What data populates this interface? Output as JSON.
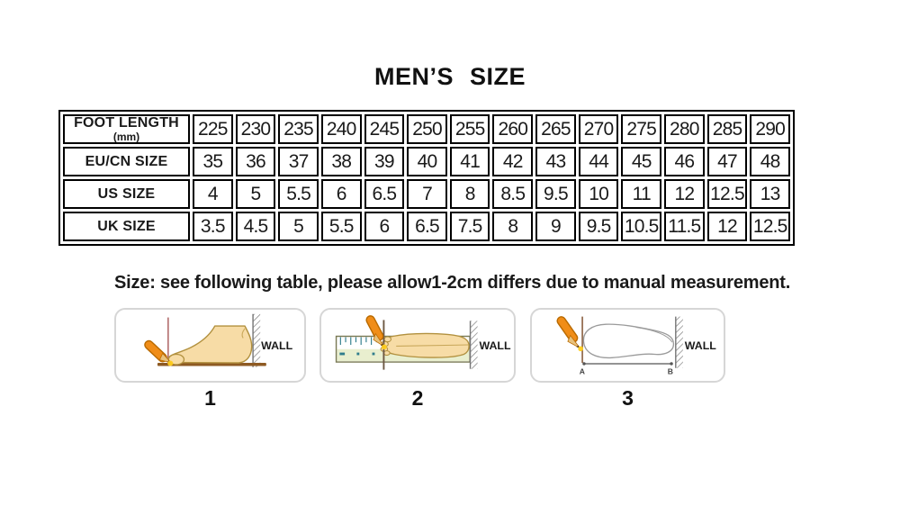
{
  "title": "MEN’S SIZE",
  "size_table": {
    "rows": [
      {
        "label": "FOOT LENGTH",
        "sublabel": "(mm)",
        "values": [
          "225",
          "230",
          "235",
          "240",
          "245",
          "250",
          "255",
          "260",
          "265",
          "270",
          "275",
          "280",
          "285",
          "290"
        ]
      },
      {
        "label": "EU/CN SIZE",
        "sublabel": "",
        "values": [
          "35",
          "36",
          "37",
          "38",
          "39",
          "40",
          "41",
          "42",
          "43",
          "44",
          "45",
          "46",
          "47",
          "48"
        ]
      },
      {
        "label": "US SIZE",
        "sublabel": "",
        "values": [
          "4",
          "5",
          "5.5",
          "6",
          "6.5",
          "7",
          "8",
          "8.5",
          "9.5",
          "10",
          "11",
          "12",
          "12.5",
          "13"
        ]
      },
      {
        "label": "UK SIZE",
        "sublabel": "",
        "values": [
          "3.5",
          "4.5",
          "5",
          "5.5",
          "6",
          "6.5",
          "7.5",
          "8",
          "9",
          "9.5",
          "10.5",
          "11.5",
          "12",
          "12.5"
        ]
      }
    ]
  },
  "note": "Size: see following table, please allow1-2cm differs due to manual measurement.",
  "steps": [
    {
      "number": "1",
      "wall_label": "WALL"
    },
    {
      "number": "2",
      "wall_label": "WALL"
    },
    {
      "number": "3",
      "wall_label": "WALL",
      "point_a": "A",
      "point_b": "B"
    }
  ],
  "colors": {
    "table_border": "#000000",
    "pencil_orange": "#ef8c15",
    "foot_tan": "#f7dca6",
    "floor_brown": "#8e5a22",
    "ruler_green": "#e9efcf",
    "panel_border": "#d6d6d6"
  }
}
